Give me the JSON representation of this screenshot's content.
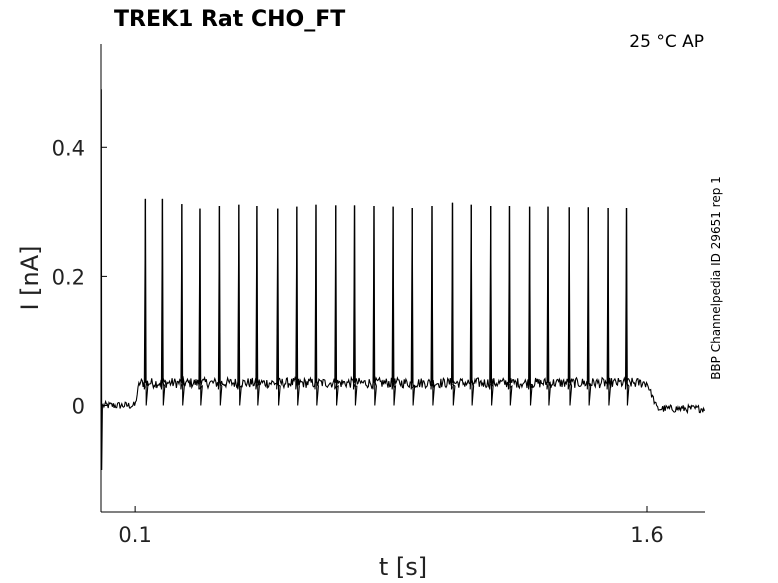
{
  "chart_data": {
    "type": "line",
    "title": "TREK1  Rat  CHO_FT",
    "condition": "25 °C  AP",
    "side_label": "BBP Channelpedia ID 29651 rep 1",
    "xlabel": "t [s]",
    "ylabel": "I [nA]",
    "xlim": [
      0.0,
      1.77
    ],
    "ylim": [
      -0.165,
      0.56
    ],
    "xticks": [
      {
        "value": 0.1,
        "label": "0.1"
      },
      {
        "value": 1.6,
        "label": "1.6"
      }
    ],
    "yticks": [
      {
        "value": 0.0,
        "label": "0"
      },
      {
        "value": 0.2,
        "label": "0.2"
      },
      {
        "value": 0.4,
        "label": "0.4"
      }
    ],
    "grid": false,
    "series": [
      {
        "color": "#000000",
        "baseline_before": 0.0,
        "plateau": 0.035,
        "baseline_after": -0.005,
        "stim_on": 0.1,
        "stim_off": 1.6,
        "spikes": [
          {
            "t": 0.13,
            "peak": 0.32
          },
          {
            "t": 0.18,
            "peak": 0.32
          },
          {
            "t": 0.237,
            "peak": 0.312
          },
          {
            "t": 0.29,
            "peak": 0.305
          },
          {
            "t": 0.347,
            "peak": 0.309
          },
          {
            "t": 0.404,
            "peak": 0.311
          },
          {
            "t": 0.457,
            "peak": 0.309
          },
          {
            "t": 0.518,
            "peak": 0.305
          },
          {
            "t": 0.574,
            "peak": 0.308
          },
          {
            "t": 0.63,
            "peak": 0.311
          },
          {
            "t": 0.688,
            "peak": 0.31
          },
          {
            "t": 0.743,
            "peak": 0.31
          },
          {
            "t": 0.8,
            "peak": 0.309
          },
          {
            "t": 0.856,
            "peak": 0.308
          },
          {
            "t": 0.912,
            "peak": 0.306
          },
          {
            "t": 0.97,
            "peak": 0.309
          },
          {
            "t": 1.03,
            "peak": 0.314
          },
          {
            "t": 1.085,
            "peak": 0.311
          },
          {
            "t": 1.142,
            "peak": 0.309
          },
          {
            "t": 1.197,
            "peak": 0.309
          },
          {
            "t": 1.256,
            "peak": 0.308
          },
          {
            "t": 1.31,
            "peak": 0.308
          },
          {
            "t": 1.372,
            "peak": 0.307
          },
          {
            "t": 1.428,
            "peak": 0.307
          },
          {
            "t": 1.486,
            "peak": 0.306
          },
          {
            "t": 1.54,
            "peak": 0.306
          }
        ]
      }
    ]
  }
}
